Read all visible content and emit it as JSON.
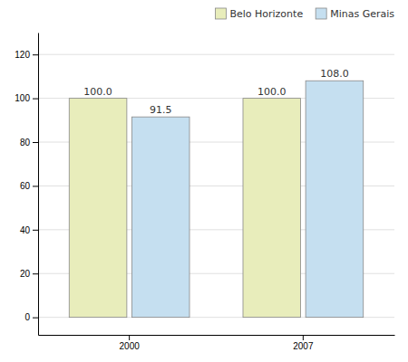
{
  "chart_data": {
    "type": "bar",
    "categories": [
      "2000",
      "2007"
    ],
    "series": [
      {
        "name": "Belo Horizonte",
        "color": "#e8edbb",
        "values": [
          100.0,
          100.0
        ],
        "value_labels": [
          "100.0",
          "100.0"
        ]
      },
      {
        "name": "Minas Gerais",
        "color": "#c5dff0",
        "values": [
          91.5,
          108.0
        ],
        "value_labels": [
          "91.5",
          "108.0"
        ]
      }
    ],
    "ylim": [
      -8,
      130
    ],
    "yticks": [
      0,
      20,
      40,
      60,
      80,
      100,
      120
    ],
    "grid": true,
    "legend": "upper right",
    "data_labels": true
  }
}
